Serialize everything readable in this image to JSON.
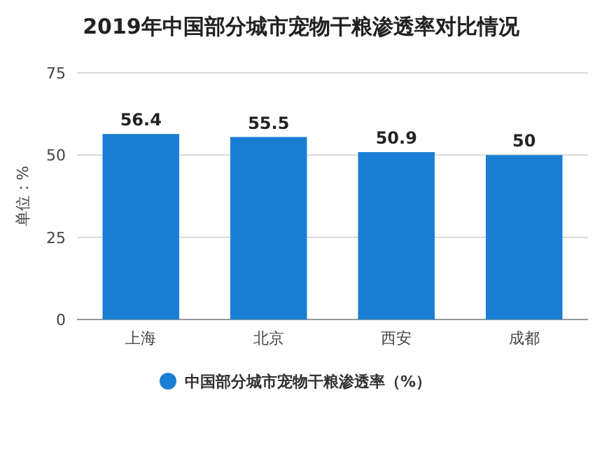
{
  "chart_data": {
    "type": "bar",
    "title": "2019年中国部分城市宠物干粮渗透率对比情况",
    "categories": [
      "上海",
      "北京",
      "西安",
      "成都"
    ],
    "series": [
      {
        "name": "中国部分城市宠物干粮渗透率（%）",
        "color": "#1a7fd4",
        "values": [
          56.4,
          55.5,
          50.9,
          50
        ]
      }
    ],
    "ylabel": "单位：%",
    "ylim": [
      0,
      75
    ],
    "yticks": [
      0,
      25,
      50,
      75
    ],
    "grid": "y",
    "legend": "bottom",
    "data_labels": true
  }
}
